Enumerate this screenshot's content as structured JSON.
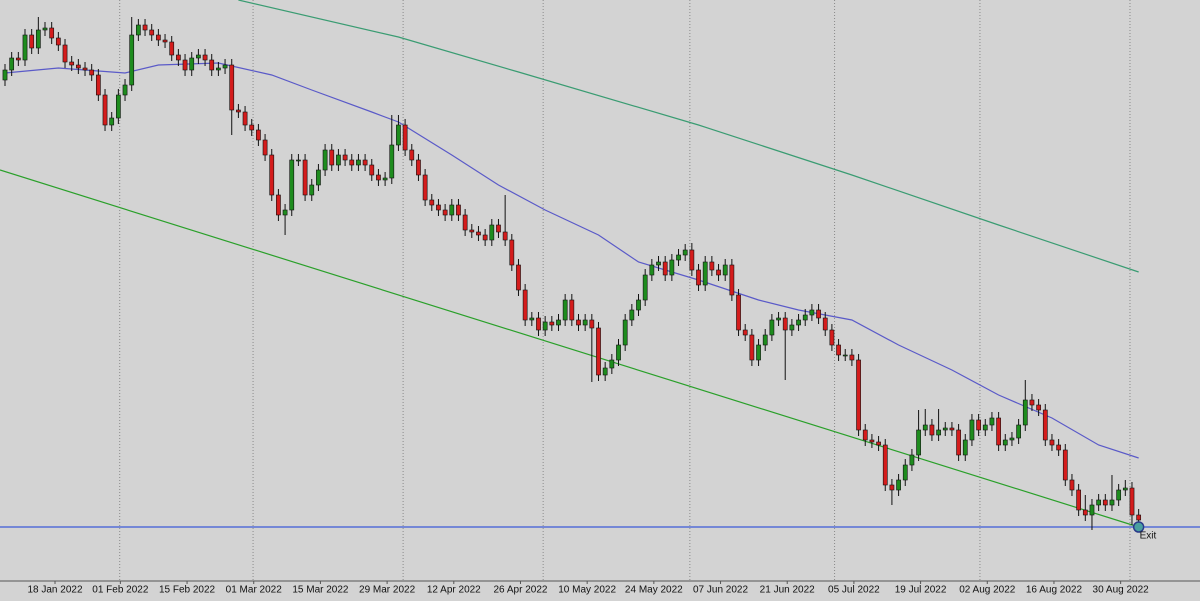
{
  "chart_data": {
    "type": "candlestick",
    "xlim": [
      -0.75,
      179.2
    ],
    "ylim": [
      0,
      580
    ],
    "xticks": [
      {
        "value": 7.5,
        "label": "18 Jan 2022"
      },
      {
        "value": 17.3,
        "label": "01 Feb 2022"
      },
      {
        "value": 27.3,
        "label": "15 Feb 2022"
      },
      {
        "value": 37.3,
        "label": "01 Mar 2022"
      },
      {
        "value": 47.3,
        "label": "15 Mar 2022"
      },
      {
        "value": 57.3,
        "label": "29 Mar 2022"
      },
      {
        "value": 67.3,
        "label": "12 Apr 2022"
      },
      {
        "value": 77.3,
        "label": "26 Apr 2022"
      },
      {
        "value": 87.3,
        "label": "10 May 2022"
      },
      {
        "value": 97.3,
        "label": "24 May 2022"
      },
      {
        "value": 107.3,
        "label": "07 Jun 2022"
      },
      {
        "value": 117.3,
        "label": "21 Jun 2022"
      },
      {
        "value": 127.3,
        "label": "05 Jul 2022"
      },
      {
        "value": 137.3,
        "label": "19 Jul 2022"
      },
      {
        "value": 147.3,
        "label": "02 Aug 2022"
      },
      {
        "value": 157.3,
        "label": "16 Aug 2022"
      },
      {
        "value": 167.3,
        "label": "30 Aug 2022"
      }
    ],
    "vgrid": [
      17.2,
      37.2,
      59.7,
      80.7,
      102.7,
      124.4,
      146.2,
      168.7
    ],
    "up_color": "#1e8c1e",
    "down_color": "#d41c1c",
    "open": [
      500,
      510,
      522,
      520,
      545,
      532,
      550,
      552,
      542,
      535,
      518,
      515,
      512,
      510,
      505,
      485,
      455,
      462,
      485,
      495,
      545,
      555,
      550,
      545,
      540,
      538,
      525,
      520,
      510,
      522,
      525,
      520,
      510,
      512,
      515,
      470,
      468,
      455,
      450,
      440,
      425,
      385,
      365,
      370,
      420,
      420,
      385,
      395,
      410,
      430,
      415,
      425,
      420,
      415,
      420,
      415,
      405,
      400,
      402,
      435,
      455,
      430,
      420,
      405,
      380,
      375,
      370,
      365,
      375,
      365,
      350,
      348,
      345,
      340,
      355,
      348,
      340,
      315,
      290,
      260,
      262,
      250,
      258,
      255,
      260,
      280,
      260,
      255,
      260,
      252,
      205,
      212,
      220,
      235,
      260,
      270,
      280,
      305,
      315,
      318,
      305,
      320,
      325,
      330,
      310,
      295,
      318,
      310,
      305,
      315,
      285,
      250,
      245,
      220,
      235,
      245,
      260,
      262,
      250,
      255,
      260,
      265,
      270,
      262,
      250,
      235,
      225,
      225,
      220,
      150,
      140,
      138,
      135,
      95,
      90,
      100,
      115,
      125,
      150,
      155,
      145,
      150,
      152,
      150,
      125,
      140,
      160,
      150,
      155,
      162,
      135,
      140,
      142,
      155,
      180,
      175,
      170,
      140,
      135,
      130,
      100,
      90,
      70,
      65,
      75,
      80,
      75,
      80,
      90,
      92,
      65
    ],
    "high": [
      516,
      528,
      528,
      551,
      551,
      563,
      558,
      558,
      548,
      541,
      524,
      521,
      518,
      516,
      511,
      491,
      468,
      491,
      501,
      563,
      561,
      561,
      556,
      551,
      546,
      544,
      531,
      526,
      528,
      531,
      531,
      526,
      518,
      521,
      521,
      476,
      474,
      461,
      456,
      446,
      431,
      391,
      376,
      426,
      426,
      426,
      401,
      416,
      436,
      436,
      431,
      431,
      426,
      426,
      426,
      421,
      411,
      408,
      465,
      465,
      461,
      436,
      426,
      411,
      386,
      381,
      376,
      381,
      381,
      371,
      356,
      354,
      351,
      361,
      361,
      385,
      346,
      321,
      296,
      268,
      268,
      264,
      264,
      266,
      286,
      286,
      266,
      266,
      266,
      258,
      218,
      226,
      241,
      266,
      276,
      286,
      311,
      321,
      324,
      324,
      326,
      331,
      336,
      337,
      316,
      324,
      324,
      316,
      321,
      321,
      291,
      256,
      251,
      241,
      251,
      266,
      268,
      268,
      261,
      266,
      271,
      276,
      276,
      268,
      256,
      241,
      231,
      231,
      226,
      156,
      146,
      144,
      141,
      101,
      106,
      121,
      131,
      170,
      171,
      161,
      171,
      158,
      158,
      156,
      146,
      166,
      166,
      161,
      168,
      168,
      146,
      148,
      161,
      200,
      186,
      181,
      176,
      146,
      141,
      136,
      106,
      96,
      85,
      81,
      86,
      86,
      105,
      96,
      100,
      98,
      71
    ],
    "low": [
      494,
      504,
      514,
      514,
      526,
      526,
      544,
      536,
      529,
      512,
      509,
      506,
      504,
      499,
      479,
      449,
      449,
      456,
      479,
      489,
      539,
      544,
      539,
      534,
      532,
      519,
      514,
      504,
      504,
      516,
      514,
      504,
      504,
      506,
      445,
      462,
      449,
      444,
      434,
      419,
      379,
      359,
      345,
      364,
      414,
      379,
      379,
      389,
      404,
      409,
      409,
      414,
      409,
      409,
      409,
      399,
      394,
      394,
      396,
      429,
      424,
      414,
      399,
      374,
      369,
      364,
      359,
      359,
      359,
      344,
      342,
      339,
      334,
      334,
      342,
      334,
      309,
      284,
      254,
      254,
      244,
      244,
      249,
      249,
      254,
      254,
      249,
      249,
      198,
      199,
      199,
      206,
      214,
      229,
      254,
      264,
      274,
      299,
      309,
      299,
      299,
      314,
      319,
      304,
      289,
      289,
      304,
      299,
      299,
      279,
      244,
      239,
      214,
      214,
      229,
      239,
      254,
      200,
      244,
      249,
      254,
      259,
      256,
      244,
      229,
      219,
      219,
      214,
      144,
      134,
      132,
      129,
      89,
      75,
      84,
      94,
      109,
      119,
      144,
      139,
      139,
      144,
      144,
      119,
      119,
      134,
      144,
      144,
      149,
      129,
      129,
      134,
      136,
      149,
      169,
      164,
      134,
      129,
      124,
      94,
      84,
      64,
      59,
      50,
      69,
      69,
      69,
      74,
      84,
      55,
      54
    ],
    "close": [
      510,
      522,
      520,
      545,
      532,
      550,
      552,
      542,
      535,
      518,
      515,
      512,
      510,
      505,
      485,
      455,
      462,
      485,
      495,
      545,
      555,
      550,
      545,
      540,
      538,
      525,
      520,
      510,
      522,
      525,
      520,
      510,
      512,
      515,
      470,
      468,
      455,
      450,
      440,
      425,
      385,
      365,
      370,
      420,
      420,
      385,
      395,
      410,
      430,
      415,
      425,
      420,
      415,
      420,
      415,
      405,
      400,
      402,
      435,
      455,
      430,
      420,
      405,
      380,
      375,
      370,
      365,
      375,
      365,
      350,
      348,
      345,
      340,
      355,
      348,
      340,
      315,
      290,
      260,
      262,
      250,
      258,
      255,
      260,
      280,
      260,
      255,
      260,
      252,
      205,
      212,
      220,
      235,
      260,
      270,
      280,
      305,
      315,
      318,
      305,
      320,
      325,
      330,
      310,
      295,
      318,
      310,
      305,
      315,
      285,
      250,
      245,
      220,
      235,
      245,
      260,
      262,
      250,
      255,
      260,
      265,
      270,
      262,
      250,
      235,
      225,
      225,
      220,
      150,
      140,
      138,
      135,
      95,
      90,
      100,
      115,
      125,
      150,
      155,
      145,
      150,
      152,
      150,
      125,
      140,
      160,
      150,
      155,
      162,
      135,
      140,
      142,
      155,
      180,
      175,
      170,
      140,
      135,
      130,
      100,
      90,
      70,
      65,
      75,
      80,
      75,
      80,
      90,
      92,
      65,
      60
    ],
    "overlays": [
      {
        "color": "#5a5ac8",
        "x": [
          0,
          8,
          18,
          23,
          32,
          40,
          46,
          55,
          59,
          67,
          74,
          81,
          89,
          95,
          104,
          113,
          119,
          127,
          134,
          142,
          149,
          157,
          164,
          170
        ],
        "values": [
          507,
          512,
          507,
          515,
          517,
          505,
          490,
          468,
          458,
          425,
          395,
          370,
          345,
          318,
          300,
          280,
          270,
          260,
          235,
          210,
          185,
          162,
          135,
          122
        ]
      },
      {
        "color": "#3a9c72",
        "x": [
          35,
          59,
          77,
          104,
          127,
          149,
          170
        ],
        "values": [
          580,
          543,
          508,
          455,
          405,
          355,
          308
        ]
      },
      {
        "color": "#2aa02a",
        "x": [
          -0.75,
          170
        ],
        "values": [
          410,
          53
        ]
      }
    ],
    "hline": {
      "value": 53,
      "color": "#3c5ad8"
    },
    "marker": {
      "x": 170,
      "value": 53,
      "label": "Exit"
    }
  }
}
